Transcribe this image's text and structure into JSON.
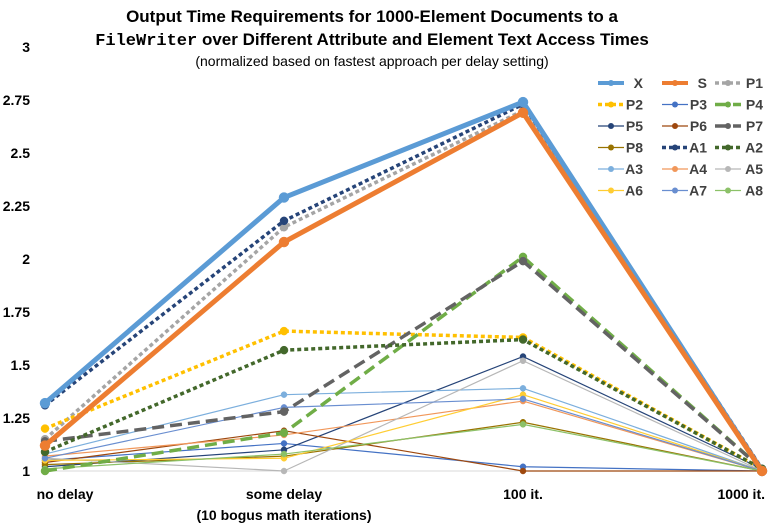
{
  "chart_data": {
    "type": "line",
    "title_line1": "Output Time Requirements for 1000-Element Documents to a",
    "title_line2_mono": "FileWriter",
    "title_line2_rest": " over Different Attribute and Element Text Access Times",
    "subtitle": "(normalized based on fastest approach per delay setting)",
    "categories": [
      "no delay",
      "some delay",
      "100 it.",
      "1000 it."
    ],
    "category_sublabels": [
      "",
      "(10 bogus math iterations)",
      "",
      ""
    ],
    "ylim": [
      1,
      3
    ],
    "yticks": [
      "1",
      "1.25",
      "1.5",
      "1.75",
      "2",
      "2.25",
      "2.5",
      "2.75",
      "3"
    ],
    "legend_position": "top-right",
    "grid": false,
    "series": [
      {
        "name": "X",
        "values": [
          1.32,
          2.29,
          2.74,
          1.0
        ],
        "color": "#5B9BD5",
        "dash": "solid",
        "width": 5
      },
      {
        "name": "S",
        "values": [
          1.12,
          2.08,
          2.69,
          1.0
        ],
        "color": "#ED7D31",
        "dash": "solid",
        "width": 5
      },
      {
        "name": "P1",
        "values": [
          1.15,
          2.15,
          2.7,
          1.01
        ],
        "color": "#A5A5A5",
        "dash": "short",
        "width": 3.5
      },
      {
        "name": "P2",
        "values": [
          1.2,
          1.66,
          1.63,
          1.01
        ],
        "color": "#FFC000",
        "dash": "short",
        "width": 3.5
      },
      {
        "name": "P3",
        "values": [
          1.05,
          1.13,
          1.02,
          1.0
        ],
        "color": "#4472C4",
        "dash": "solid",
        "width": 1.2
      },
      {
        "name": "P4",
        "values": [
          1.0,
          1.18,
          2.01,
          1.01
        ],
        "color": "#70AD47",
        "dash": "long",
        "width": 3.5
      },
      {
        "name": "P5",
        "values": [
          1.02,
          1.1,
          1.54,
          1.01
        ],
        "color": "#264478",
        "dash": "solid",
        "width": 1.2
      },
      {
        "name": "P6",
        "values": [
          1.04,
          1.19,
          1.0,
          1.0
        ],
        "color": "#9E480E",
        "dash": "solid",
        "width": 1.2
      },
      {
        "name": "P7",
        "values": [
          1.14,
          1.28,
          1.99,
          1.01
        ],
        "color": "#636363",
        "dash": "long",
        "width": 3.5
      },
      {
        "name": "P8",
        "values": [
          1.03,
          1.07,
          1.23,
          1.0
        ],
        "color": "#997300",
        "dash": "solid",
        "width": 1.2
      },
      {
        "name": "A1",
        "values": [
          1.31,
          2.18,
          2.73,
          1.01
        ],
        "color": "#264478",
        "dash": "short",
        "width": 3.5
      },
      {
        "name": "A2",
        "values": [
          1.09,
          1.57,
          1.62,
          1.01
        ],
        "color": "#43682B",
        "dash": "short",
        "width": 3.5
      },
      {
        "name": "A3",
        "values": [
          1.08,
          1.36,
          1.39,
          1.0
        ],
        "color": "#7CAFDD",
        "dash": "solid",
        "width": 1.2
      },
      {
        "name": "A4",
        "values": [
          1.07,
          1.17,
          1.33,
          1.0
        ],
        "color": "#F1975A",
        "dash": "solid",
        "width": 1.2
      },
      {
        "name": "A5",
        "values": [
          1.06,
          1.0,
          1.52,
          1.0
        ],
        "color": "#B7B7B7",
        "dash": "solid",
        "width": 1.2
      },
      {
        "name": "A6",
        "values": [
          1.05,
          1.06,
          1.36,
          1.0
        ],
        "color": "#FFCD33",
        "dash": "solid",
        "width": 1.2
      },
      {
        "name": "A7",
        "values": [
          1.06,
          1.3,
          1.34,
          1.0
        ],
        "color": "#698ED0",
        "dash": "solid",
        "width": 1.2
      },
      {
        "name": "A8",
        "values": [
          1.01,
          1.08,
          1.22,
          1.0
        ],
        "color": "#8CC168",
        "dash": "solid",
        "width": 1.2
      }
    ]
  }
}
